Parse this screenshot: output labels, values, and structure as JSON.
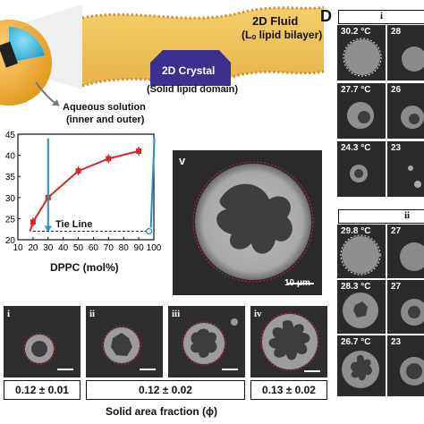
{
  "panel_d_label": "D",
  "schematic": {
    "fluid_label": "2D Fluid",
    "fluid_sub": "(Lₒ lipid bilayer)",
    "crystal_label": "2D Crystal",
    "crystal_sub": "(Solid lipid domain)",
    "aqueous_label": "Aqueous solution",
    "aqueous_sub": "(inner and outer)"
  },
  "chart_data": {
    "type": "line",
    "x": [
      20,
      30,
      50,
      70,
      90
    ],
    "series": [
      {
        "values": [
          24.2,
          30.0,
          36.3,
          39.2,
          41.0
        ]
      }
    ],
    "xticks": [
      "10",
      "20",
      "30",
      "40",
      "50",
      "60",
      "70",
      "80",
      "90",
      "100"
    ],
    "yticks": [
      "20",
      "25",
      "30",
      "35",
      "40",
      "45"
    ],
    "xlabel": "DPPC (mol%)",
    "xlim": [
      10,
      100
    ],
    "ylim": [
      20,
      45
    ],
    "tie_line_label": "Tie Line",
    "tie_line_y": 22,
    "colors": {
      "curve": "#d6282b",
      "arrow": "#2a8fc4"
    }
  },
  "panel_v": {
    "label": "v",
    "scale": "10 μm"
  },
  "sub_panels": [
    {
      "label": "i",
      "fraction": "0.12 ± 0.01"
    },
    {
      "label": "ii"
    },
    {
      "label": "iii",
      "fraction": "0.12 ± 0.02"
    },
    {
      "label": "iv",
      "fraction": "0.13 ± 0.02"
    }
  ],
  "solid_area_label": "Solid area fraction (ϕ)",
  "column_d": {
    "header_i": "i",
    "header_ii": "ii",
    "temps_i": [
      "30.2 °C",
      "27.7 °C",
      "24.3 °C"
    ],
    "temps_i_right": [
      "28",
      "26",
      "23"
    ],
    "temps_ii": [
      "29.8 °C",
      "28.3 °C",
      "26.7 °C"
    ],
    "temps_ii_right": [
      "27",
      "27",
      "23"
    ]
  }
}
